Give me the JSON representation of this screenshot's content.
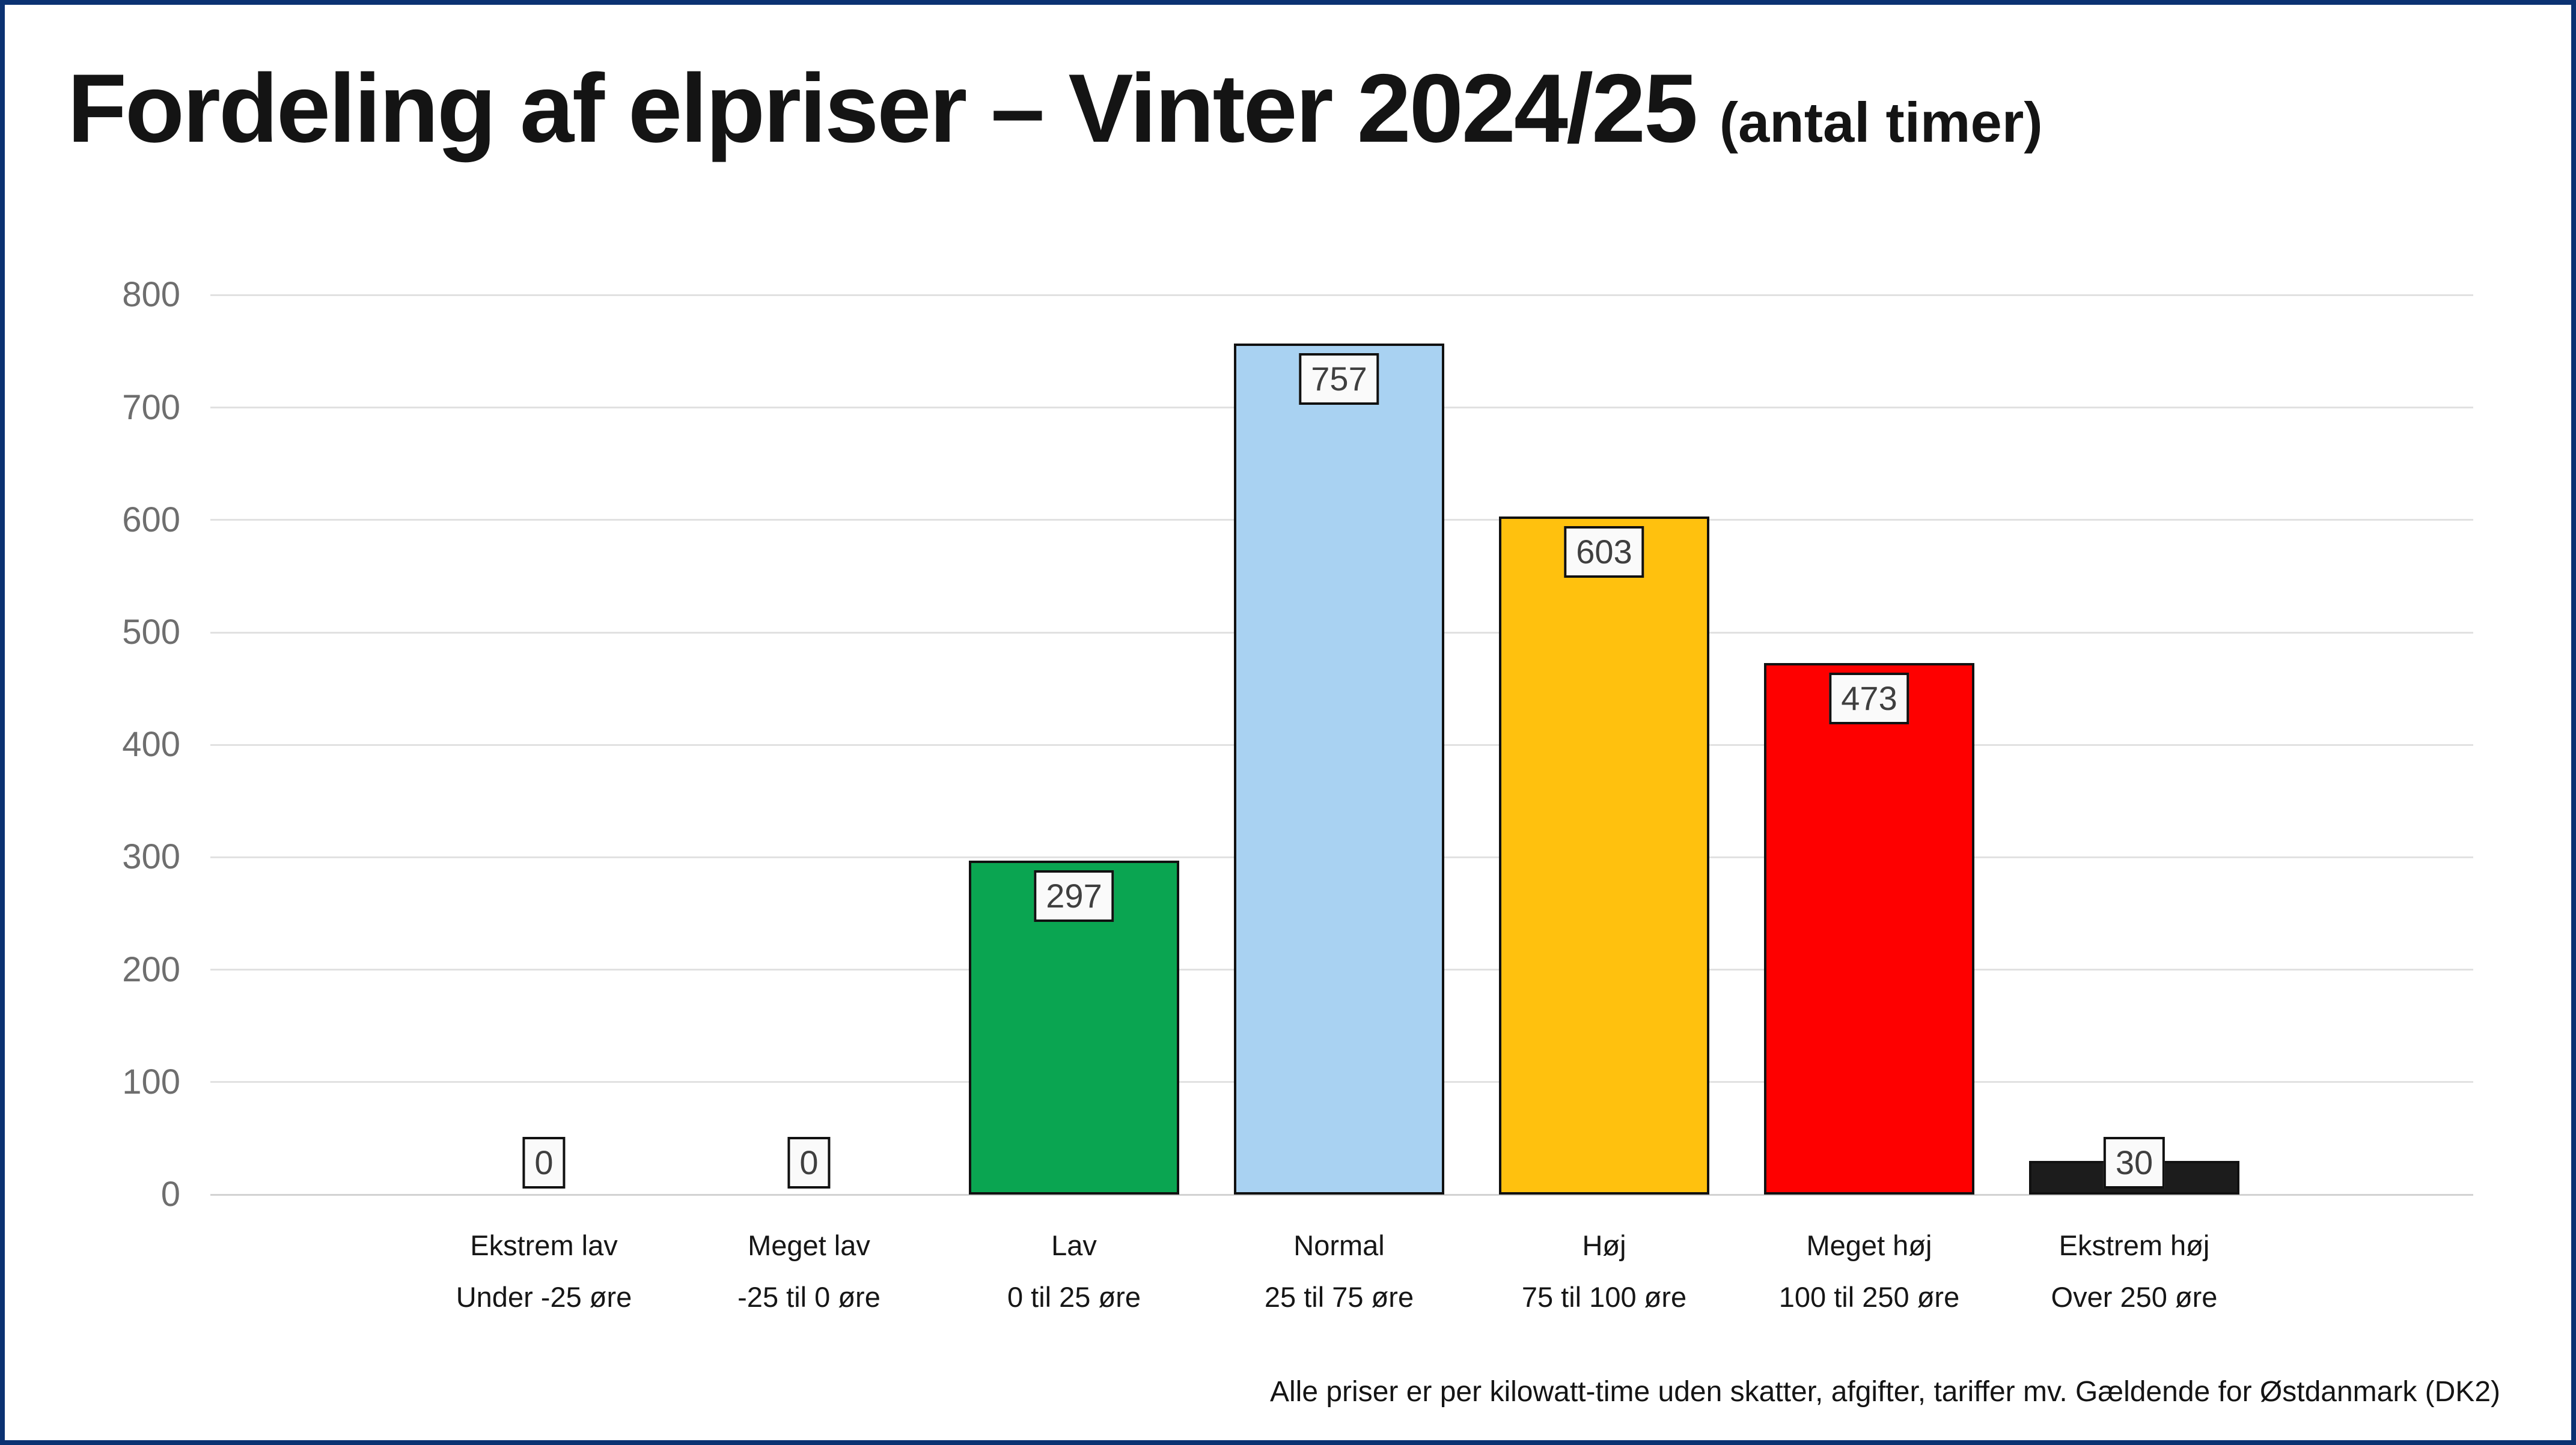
{
  "title": {
    "main": "Fordeling af elpriser – Vinter 2024/25",
    "suffix": "(antal timer)"
  },
  "footer": "Alle priser er per kilowatt-time uden skatter, afgifter, tariffer mv. Gældende for Østdanmark (DK2)",
  "colors": {
    "frame": "#0b3272",
    "grid": "#e1e1e1",
    "tick_text": "#6e6e6e",
    "text": "#1a1a1a",
    "value_text": "#3f3f3f",
    "label_box_bg": "#fafafa",
    "label_box_border": "#111111"
  },
  "chart_data": {
    "type": "bar",
    "title": "Fordeling af elpriser – Vinter 2024/25 (antal timer)",
    "categories": [
      "Ekstrem lav",
      "Meget lav",
      "Lav",
      "Normal",
      "Høj",
      "Meget høj",
      "Ekstrem høj"
    ],
    "category_sublabels": [
      "Under -25 øre",
      "-25 til 0 øre",
      "0 til 25 øre",
      "25 til 75 øre",
      "75 til 100 øre",
      "100 til 250 øre",
      "Over 250 øre"
    ],
    "values": [
      0,
      0,
      297,
      757,
      603,
      473,
      30
    ],
    "bar_colors": [
      null,
      null,
      "#0aa551",
      "#a9d2f2",
      "#ffc10e",
      "#fe0000",
      "#1c1c1c"
    ],
    "value_labels": [
      "0",
      "0",
      "297",
      "757",
      "603",
      "473",
      "30"
    ],
    "xlabel": "",
    "ylabel": "",
    "ylim": [
      0,
      800
    ],
    "yticks": [
      0,
      100,
      200,
      300,
      400,
      500,
      600,
      700,
      800
    ],
    "grid": true,
    "legend": false
  }
}
